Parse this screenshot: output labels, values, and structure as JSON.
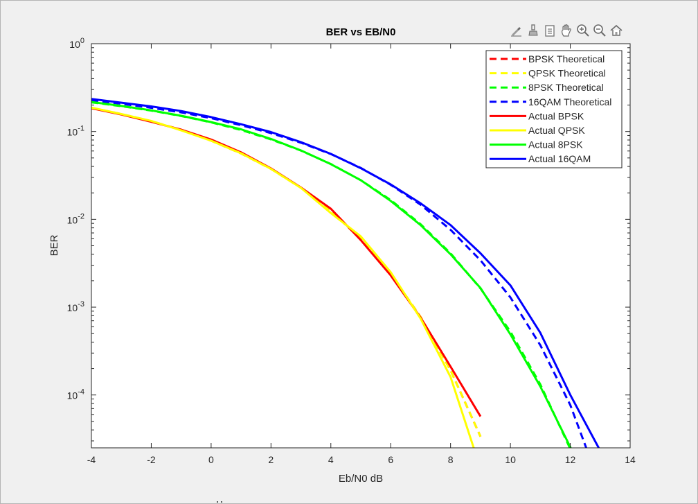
{
  "chart_data": {
    "type": "line",
    "title": "BER vs EB/N0",
    "xlabel": "Eb/N0 dB",
    "ylabel": "BER",
    "xlim": [
      -4,
      14
    ],
    "ylim": [
      2.5e-05,
      1
    ],
    "yscale": "log",
    "grid": false,
    "legend_position": "top-right",
    "x_ticks": [
      -4,
      -2,
      0,
      2,
      4,
      6,
      8,
      10,
      12,
      14
    ],
    "x_tick_labels": [
      "-4",
      "-2",
      "0",
      "2",
      "4",
      "6",
      "8",
      "10",
      "12",
      "14"
    ],
    "y_ticks": [
      1,
      0.1,
      0.01,
      0.001,
      0.0001
    ],
    "y_tick_labels": [
      {
        "base": "10",
        "exp": "0"
      },
      {
        "base": "10",
        "exp": "-1"
      },
      {
        "base": "10",
        "exp": "-2"
      },
      {
        "base": "10",
        "exp": "-3"
      },
      {
        "base": "10",
        "exp": "-4"
      }
    ],
    "series": [
      {
        "name": "BPSK Theoretical",
        "color": "#ff0000",
        "dash": true,
        "x": [
          -4,
          -3,
          -2,
          -1,
          0,
          1,
          2,
          3,
          4,
          5,
          6,
          7,
          8,
          9
        ],
        "y": [
          0.186,
          0.158,
          0.131,
          0.104,
          0.0786,
          0.0563,
          0.0375,
          0.0229,
          0.0125,
          0.00595,
          0.00239,
          0.000773,
          0.000191,
          3.36e-05
        ]
      },
      {
        "name": "QPSK Theoretical",
        "color": "#ffff00",
        "dash": true,
        "x": [
          -4,
          -3,
          -2,
          -1,
          0,
          1,
          2,
          3,
          4,
          5,
          6,
          7,
          8,
          9
        ],
        "y": [
          0.186,
          0.158,
          0.131,
          0.104,
          0.0786,
          0.0563,
          0.0375,
          0.0229,
          0.0125,
          0.00595,
          0.00239,
          0.000773,
          0.000191,
          3.36e-05
        ]
      },
      {
        "name": "8PSK Theoretical",
        "color": "#00ff00",
        "dash": true,
        "x": [
          -4,
          -3,
          -2,
          -1,
          0,
          1,
          2,
          3,
          4,
          5,
          6,
          7,
          8,
          9,
          10,
          11,
          12,
          13
        ],
        "y": [
          0.215,
          0.194,
          0.173,
          0.15,
          0.127,
          0.104,
          0.0813,
          0.0606,
          0.0426,
          0.0279,
          0.0166,
          0.0088,
          0.0041,
          0.00163,
          0.000526,
          0.000132,
          2.43e-05,
          3.1e-06
        ]
      },
      {
        "name": "16QAM Theoretical",
        "color": "#0000ff",
        "dash": true,
        "x": [
          -4,
          -3,
          -2,
          -1,
          0,
          1,
          2,
          3,
          4,
          5,
          6,
          7,
          8,
          9,
          10,
          11,
          12,
          13
        ],
        "y": [
          0.226,
          0.207,
          0.186,
          0.165,
          0.142,
          0.118,
          0.0959,
          0.0745,
          0.0554,
          0.0385,
          0.0247,
          0.0147,
          0.0076,
          0.00342,
          0.00129,
          0.000369,
          7.68e-05,
          9.3e-06
        ]
      },
      {
        "name": "Actual BPSK",
        "color": "#ff0000",
        "dash": false,
        "x": [
          -4,
          -3,
          -2,
          -1,
          0,
          1,
          2,
          3,
          4,
          5,
          6,
          7,
          8,
          9
        ],
        "y": [
          0.184,
          0.156,
          0.129,
          0.105,
          0.081,
          0.058,
          0.038,
          0.023,
          0.0132,
          0.0058,
          0.0023,
          0.00076,
          0.00021,
          5.7e-05
        ]
      },
      {
        "name": "Actual QPSK",
        "color": "#ffff00",
        "dash": false,
        "x": [
          -4,
          -3,
          -2,
          -1,
          0,
          1,
          2,
          3,
          4,
          5,
          6,
          7,
          8,
          8.8
        ],
        "y": [
          0.187,
          0.158,
          0.132,
          0.103,
          0.0785,
          0.0565,
          0.0375,
          0.0228,
          0.0118,
          0.0064,
          0.0025,
          0.00074,
          0.00016,
          2.35e-05
        ]
      },
      {
        "name": "Actual 8PSK",
        "color": "#00ff00",
        "dash": false,
        "x": [
          -4,
          -3,
          -2,
          -1,
          0,
          1,
          2,
          3,
          4,
          5,
          6,
          7,
          8,
          9,
          10,
          11,
          12,
          12.4
        ],
        "y": [
          0.217,
          0.196,
          0.174,
          0.151,
          0.128,
          0.106,
          0.0823,
          0.0609,
          0.0425,
          0.0279,
          0.0162,
          0.0086,
          0.004,
          0.00165,
          0.00049,
          0.000125,
          2.55e-05,
          1.2e-05
        ]
      },
      {
        "name": "Actual 16QAM",
        "color": "#0000ff",
        "dash": false,
        "x": [
          -4,
          -3,
          -2,
          -1,
          0,
          1,
          2,
          3,
          4,
          5,
          6,
          7,
          8,
          9,
          10,
          11,
          12,
          13
        ],
        "y": [
          0.235,
          0.213,
          0.193,
          0.171,
          0.146,
          0.121,
          0.0986,
          0.0757,
          0.0556,
          0.0382,
          0.025,
          0.0152,
          0.0086,
          0.0041,
          0.00177,
          0.00051,
          0.0001,
          2.32e-05
        ]
      }
    ]
  },
  "toolbar": {
    "tools": [
      "brush-edit-icon",
      "paint-icon",
      "legend-toggle-icon",
      "pan-hand-icon",
      "zoom-in-icon",
      "zoom-out-icon",
      "home-icon"
    ]
  }
}
